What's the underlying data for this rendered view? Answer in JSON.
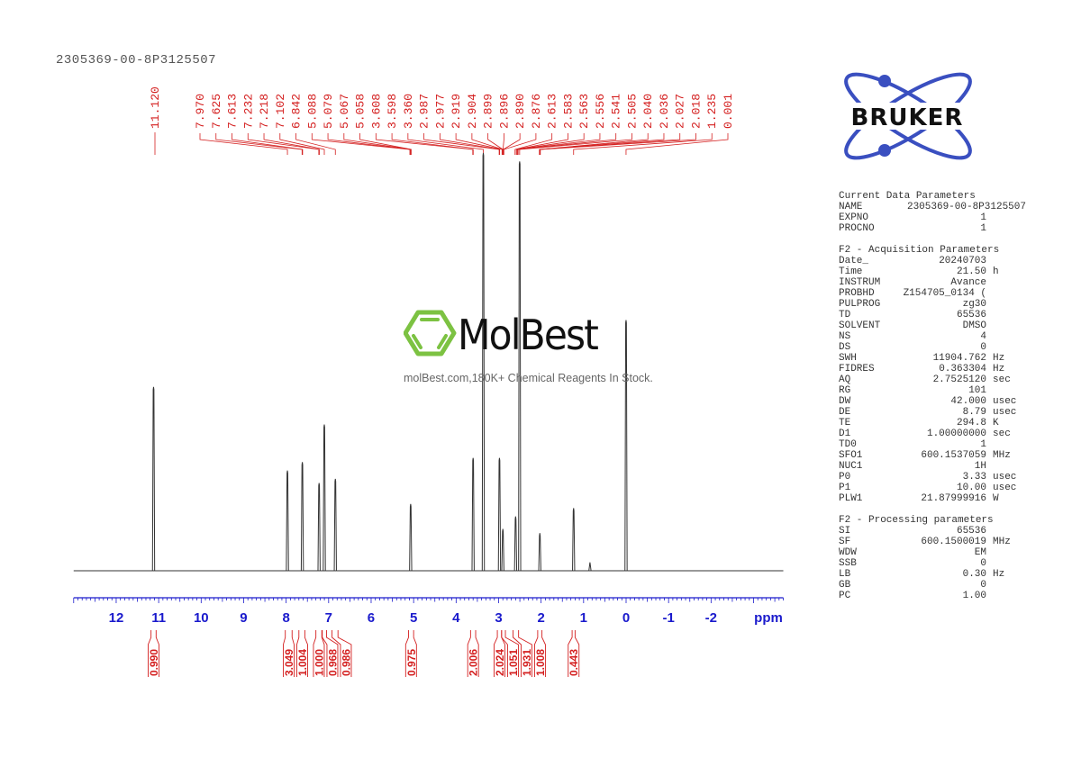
{
  "header": {
    "sample_name": "2305369-00-8P3125507"
  },
  "logos": {
    "bruker": "BRUKER",
    "molbest": "MolBest",
    "molbest_tagline": "molBest.com,180K+ Chemical Reagents In Stock."
  },
  "colors": {
    "spectrum": "#333333",
    "peak_labels": "#d42020",
    "axis": "#1a1acc",
    "bruker_blue": "#3a4fc0",
    "molbest_green": "#7cc242"
  },
  "parameters": {
    "current": {
      "title": "Current Data Parameters",
      "rows": [
        {
          "label": "NAME",
          "value": "2305369-00-8P3125507",
          "unit": ""
        },
        {
          "label": "EXPNO",
          "value": "1",
          "unit": ""
        },
        {
          "label": "PROCNO",
          "value": "1",
          "unit": ""
        }
      ]
    },
    "acquisition": {
      "title": "F2 - Acquisition Parameters",
      "rows": [
        {
          "label": "Date_",
          "value": "20240703",
          "unit": ""
        },
        {
          "label": "Time",
          "value": "21.50",
          "unit": "h"
        },
        {
          "label": "INSTRUM",
          "value": "Avance",
          "unit": ""
        },
        {
          "label": "PROBHD",
          "value": "Z154705_0134 (",
          "unit": ""
        },
        {
          "label": "PULPROG",
          "value": "zg30",
          "unit": ""
        },
        {
          "label": "TD",
          "value": "65536",
          "unit": ""
        },
        {
          "label": "SOLVENT",
          "value": "DMSO",
          "unit": ""
        },
        {
          "label": "NS",
          "value": "4",
          "unit": ""
        },
        {
          "label": "DS",
          "value": "0",
          "unit": ""
        },
        {
          "label": "SWH",
          "value": "11904.762",
          "unit": "Hz"
        },
        {
          "label": "FIDRES",
          "value": "0.363304",
          "unit": "Hz"
        },
        {
          "label": "AQ",
          "value": "2.7525120",
          "unit": "sec"
        },
        {
          "label": "RG",
          "value": "101",
          "unit": ""
        },
        {
          "label": "DW",
          "value": "42.000",
          "unit": "usec"
        },
        {
          "label": "DE",
          "value": "8.79",
          "unit": "usec"
        },
        {
          "label": "TE",
          "value": "294.8",
          "unit": "K"
        },
        {
          "label": "D1",
          "value": "1.00000000",
          "unit": "sec"
        },
        {
          "label": "TD0",
          "value": "1",
          "unit": ""
        },
        {
          "label": "SFO1",
          "value": "600.1537059",
          "unit": "MHz"
        },
        {
          "label": "NUC1",
          "value": "1H",
          "unit": ""
        },
        {
          "label": "P0",
          "value": "3.33",
          "unit": "usec"
        },
        {
          "label": "P1",
          "value": "10.00",
          "unit": "usec"
        },
        {
          "label": "PLW1",
          "value": "21.87999916",
          "unit": "W"
        }
      ]
    },
    "processing": {
      "title": "F2 - Processing parameters",
      "rows": [
        {
          "label": "SI",
          "value": "65536",
          "unit": ""
        },
        {
          "label": "SF",
          "value": "600.1500019",
          "unit": "MHz"
        },
        {
          "label": "WDW",
          "value": "EM",
          "unit": ""
        },
        {
          "label": "SSB",
          "value": "0",
          "unit": ""
        },
        {
          "label": "LB",
          "value": "0.30",
          "unit": "Hz"
        },
        {
          "label": "GB",
          "value": "0",
          "unit": ""
        },
        {
          "label": "PC",
          "value": "1.00",
          "unit": ""
        }
      ]
    }
  },
  "chart_data": {
    "type": "line",
    "xlabel": "ppm",
    "xlim": [
      13.0,
      -3.7
    ],
    "x_reversed": true,
    "x_ticks": [
      "12",
      "11",
      "10",
      "9",
      "8",
      "7",
      "6",
      "5",
      "4",
      "3",
      "2",
      "1",
      "0",
      "-1",
      "-2"
    ],
    "grid": false,
    "peaks": [
      {
        "ppm": 11.12,
        "intensity": 44
      },
      {
        "ppm": 7.97,
        "intensity": 24
      },
      {
        "ppm": 7.619,
        "intensity": 26
      },
      {
        "ppm": 7.225,
        "intensity": 21
      },
      {
        "ppm": 7.102,
        "intensity": 35
      },
      {
        "ppm": 6.842,
        "intensity": 22
      },
      {
        "ppm": 5.07,
        "intensity": 16
      },
      {
        "ppm": 3.6,
        "intensity": 27
      },
      {
        "ppm": 3.36,
        "intensity": 100
      },
      {
        "ppm": 2.98,
        "intensity": 27
      },
      {
        "ppm": 2.9,
        "intensity": 10
      },
      {
        "ppm": 2.6,
        "intensity": 13
      },
      {
        "ppm": 2.505,
        "intensity": 98
      },
      {
        "ppm": 2.03,
        "intensity": 9
      },
      {
        "ppm": 1.235,
        "intensity": 15
      },
      {
        "ppm": 0.85,
        "intensity": 2
      },
      {
        "ppm": 0.001,
        "intensity": 60
      }
    ],
    "peak_labels": [
      "11.120",
      "7.970",
      "7.625",
      "7.613",
      "7.232",
      "7.218",
      "7.102",
      "6.842",
      "5.088",
      "5.079",
      "5.067",
      "5.058",
      "3.608",
      "3.598",
      "3.360",
      "2.987",
      "2.977",
      "2.919",
      "2.904",
      "2.899",
      "2.896",
      "2.890",
      "2.876",
      "2.613",
      "2.583",
      "2.563",
      "2.556",
      "2.541",
      "2.505",
      "2.040",
      "2.036",
      "2.027",
      "2.018",
      "1.235",
      "0.001"
    ],
    "integrals": [
      {
        "value": "0.990",
        "from": 11.18,
        "to": 11.06
      },
      {
        "value": "3.049",
        "from": 8.02,
        "to": 7.86
      },
      {
        "value": "1.004",
        "from": 7.7,
        "to": 7.56
      },
      {
        "value": "1.000",
        "from": 7.3,
        "to": 7.16
      },
      {
        "value": "0.968",
        "from": 7.15,
        "to": 7.05
      },
      {
        "value": "0.986",
        "from": 6.92,
        "to": 6.78
      },
      {
        "value": "0.975",
        "from": 5.12,
        "to": 5.0
      },
      {
        "value": "2.006",
        "from": 3.66,
        "to": 3.54
      },
      {
        "value": "2.024",
        "from": 3.03,
        "to": 2.93
      },
      {
        "value": "1.051",
        "from": 2.93,
        "to": 2.84
      },
      {
        "value": "1.931",
        "from": 2.66,
        "to": 2.53
      },
      {
        "value": "1.008",
        "from": 2.08,
        "to": 1.98
      },
      {
        "value": "0.443",
        "from": 1.27,
        "to": 1.2
      }
    ]
  }
}
